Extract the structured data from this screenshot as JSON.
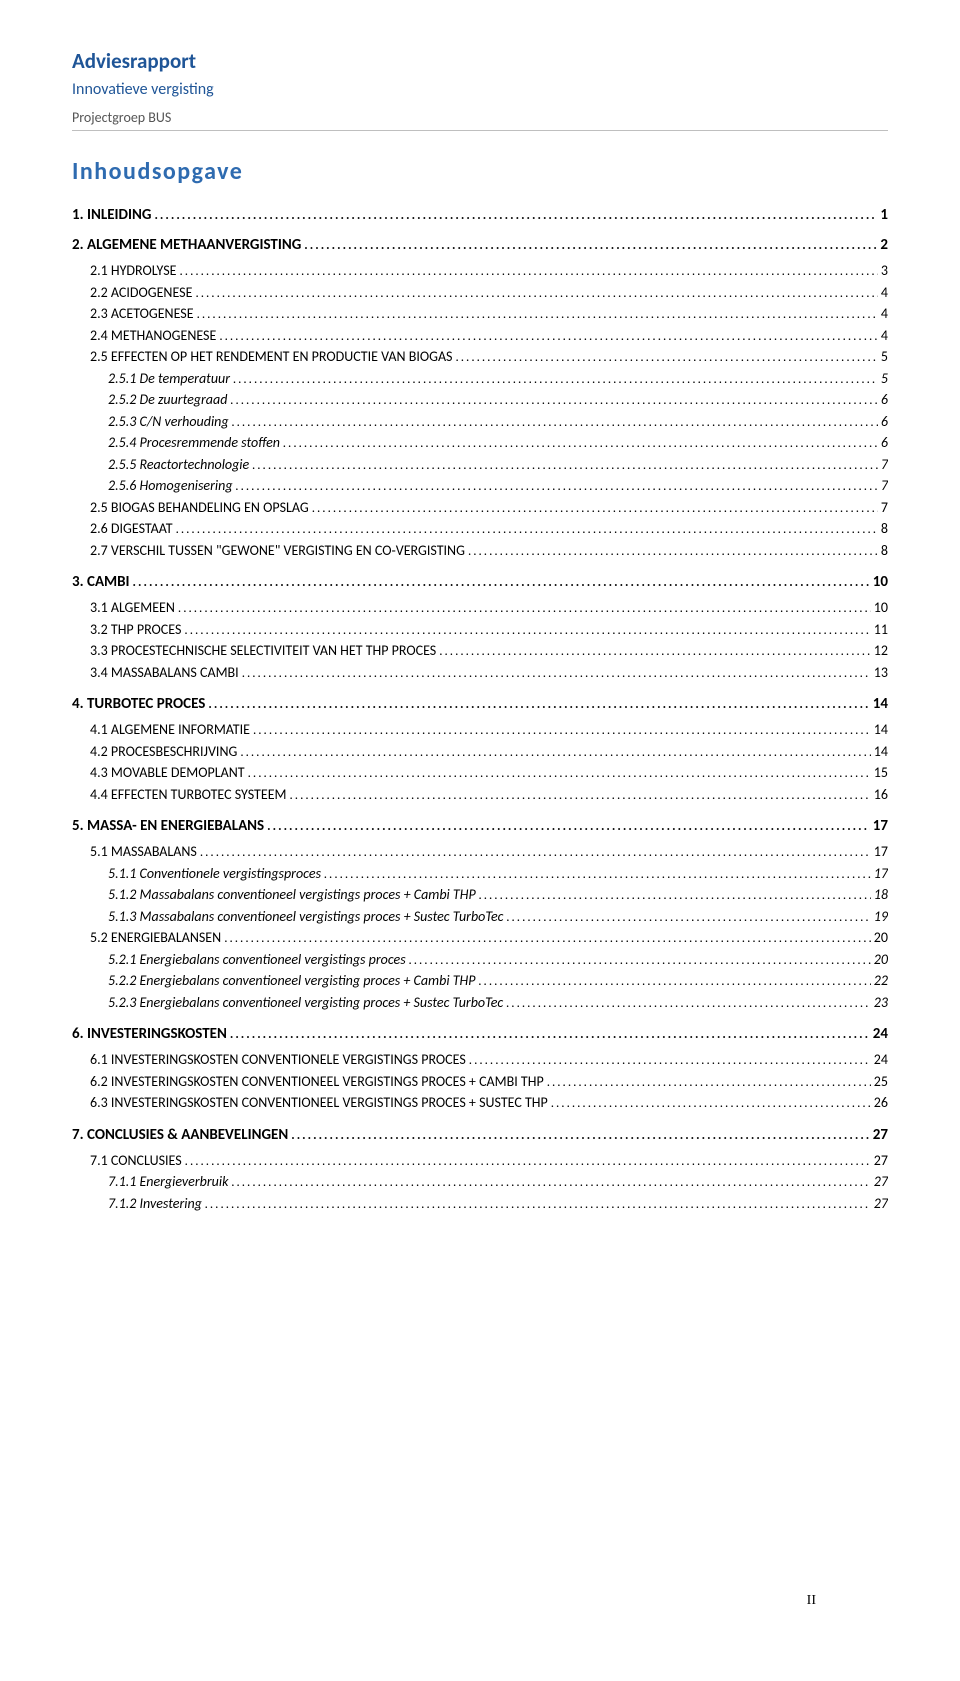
{
  "header": {
    "title": "Adviesrapport",
    "subtitle": "Innovatieve vergisting",
    "group": "Projectgroep BUS"
  },
  "toc_title": "Inhoudsopgave",
  "page_number": "II",
  "toc": [
    {
      "level": 1,
      "label": "1. INLEIDING",
      "page": "1"
    },
    {
      "level": 1,
      "label": "2. ALGEMENE METHAANVERGISTING",
      "page": "2"
    },
    {
      "level": 2,
      "label": "2.1 HYDROLYSE",
      "page": "3",
      "sc": true
    },
    {
      "level": 2,
      "label": "2.2 ACIDOGENESE",
      "page": "4",
      "sc": true
    },
    {
      "level": 2,
      "label": "2.3 ACETOGENESE",
      "page": "4",
      "sc": true
    },
    {
      "level": 2,
      "label": "2.4 METHANOGENESE",
      "page": "4",
      "sc": true
    },
    {
      "level": 2,
      "label": "2.5 EFFECTEN OP HET RENDEMENT EN PRODUCTIE VAN BIOGAS",
      "page": "5",
      "sc": true
    },
    {
      "level": 3,
      "label": "2.5.1 De temperatuur",
      "page": "5"
    },
    {
      "level": 3,
      "label": "2.5.2 De zuurtegraad",
      "page": "6"
    },
    {
      "level": 3,
      "label": "2.5.3 C/N verhouding",
      "page": "6"
    },
    {
      "level": 3,
      "label": "2.5.4 Procesremmende stoffen",
      "page": "6"
    },
    {
      "level": 3,
      "label": "2.5.5 Reactortechnologie",
      "page": "7"
    },
    {
      "level": 3,
      "label": "2.5.6 Homogenisering",
      "page": "7"
    },
    {
      "level": 2,
      "label": "2.5 BIOGAS BEHANDELING EN OPSLAG",
      "page": "7",
      "sc": true
    },
    {
      "level": 2,
      "label": "2.6 DIGESTAAT",
      "page": "8",
      "sc": true
    },
    {
      "level": 2,
      "label": "2.7 VERSCHIL TUSSEN \"GEWONE\" VERGISTING EN CO-VERGISTING",
      "page": "8",
      "sc": true
    },
    {
      "level": 1,
      "label": "3. CAMBI",
      "page": "10"
    },
    {
      "level": 2,
      "label": "3.1 ALGEMEEN",
      "page": "10",
      "sc": true
    },
    {
      "level": 2,
      "label": "3.2 THP PROCES",
      "page": "11",
      "sc": true
    },
    {
      "level": 2,
      "label": "3.3 PROCESTECHNISCHE SELECTIVITEIT VAN HET THP PROCES",
      "page": "12",
      "sc": true
    },
    {
      "level": 2,
      "label": "3.4 MASSABALANS CAMBI",
      "page": "13",
      "sc": true
    },
    {
      "level": 1,
      "label": "4. TURBOTEC PROCES",
      "page": "14"
    },
    {
      "level": 2,
      "label": "4.1 ALGEMENE INFORMATIE",
      "page": "14",
      "sc": true
    },
    {
      "level": 2,
      "label": "4.2 PROCESBESCHRIJVING",
      "page": "14",
      "sc": true
    },
    {
      "level": 2,
      "label": "4.3 MOVABLE DEMOPLANT",
      "page": "15",
      "sc": true
    },
    {
      "level": 2,
      "label": "4.4 EFFECTEN TURBOTEC SYSTEEM",
      "page": "16",
      "sc": true
    },
    {
      "level": 1,
      "label": "5. MASSA- EN ENERGIEBALANS",
      "page": "17"
    },
    {
      "level": 2,
      "label": "5.1 MASSABALANS",
      "page": "17",
      "sc": true
    },
    {
      "level": 3,
      "label": "5.1.1 Conventionele vergistingsproces",
      "page": "17"
    },
    {
      "level": 3,
      "label": "5.1.2 Massabalans conventioneel vergistings proces + Cambi THP",
      "page": "18"
    },
    {
      "level": 3,
      "label": "5.1.3 Massabalans conventioneel vergistings proces + Sustec TurboTec",
      "page": "19"
    },
    {
      "level": 2,
      "label": "5.2 ENERGIEBALANSEN",
      "page": "20",
      "sc": true
    },
    {
      "level": 3,
      "label": "5.2.1 Energiebalans conventioneel vergistings proces",
      "page": "20"
    },
    {
      "level": 3,
      "label": "5.2.2 Energiebalans conventioneel vergisting proces + Cambi THP",
      "page": "22"
    },
    {
      "level": 3,
      "label": "5.2.3 Energiebalans conventioneel vergisting proces + Sustec TurboTec",
      "page": "23"
    },
    {
      "level": 1,
      "label": "6. INVESTERINGSKOSTEN",
      "page": "24"
    },
    {
      "level": 2,
      "label": "6.1 INVESTERINGSKOSTEN CONVENTIONELE VERGISTINGS PROCES",
      "page": "24",
      "sc": true
    },
    {
      "level": 2,
      "label": "6.2 INVESTERINGSKOSTEN CONVENTIONEEL VERGISTINGS PROCES + CAMBI THP",
      "page": "25",
      "sc": true
    },
    {
      "level": 2,
      "label": "6.3 INVESTERINGSKOSTEN CONVENTIONEEL VERGISTINGS PROCES + SUSTEC THP",
      "page": "26",
      "sc": true
    },
    {
      "level": 1,
      "label": "7. CONCLUSIES & AANBEVELINGEN",
      "page": "27"
    },
    {
      "level": 2,
      "label": "7.1 CONCLUSIES",
      "page": "27",
      "sc": true
    },
    {
      "level": 3,
      "label": "7.1.1 Energieverbruik",
      "page": "27"
    },
    {
      "level": 3,
      "label": "7.1.2 Investering",
      "page": "27"
    }
  ]
}
